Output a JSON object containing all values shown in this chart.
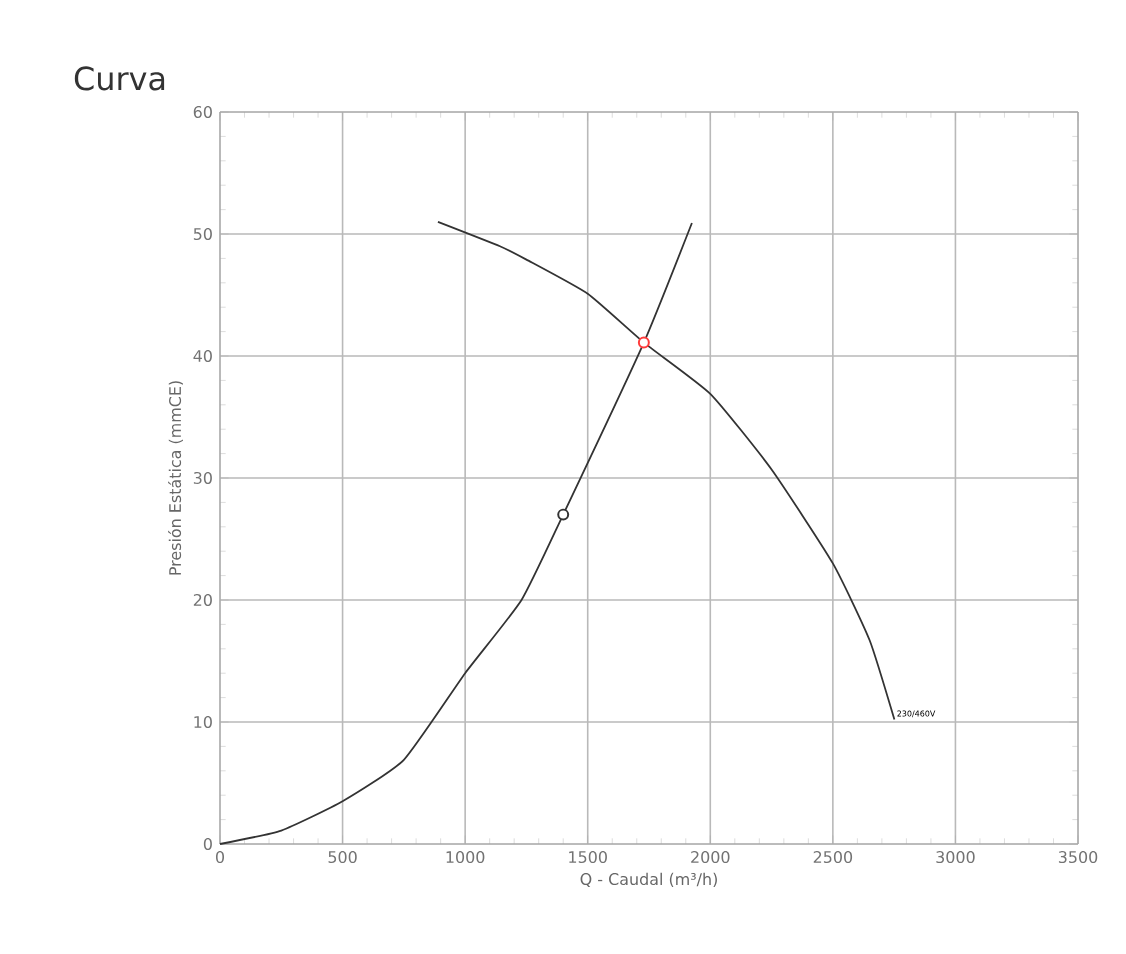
{
  "chart_data": {
    "type": "line",
    "title": "Curva",
    "xlabel": "Q - Caudal (m³/h)",
    "ylabel": "Presión Estática (mmCE)",
    "xlim": [
      0,
      3500
    ],
    "xticks": [
      0,
      500,
      1000,
      1500,
      2000,
      2500,
      3000,
      3500
    ],
    "ylim": [
      0,
      60
    ],
    "yticks": [
      0,
      10,
      20,
      30,
      40,
      50,
      60
    ],
    "grid": true,
    "series": [
      {
        "name": "230/460V",
        "color": "#333333",
        "x": [
          889,
          1142,
          1250,
          1500,
          1729,
          2000,
          2250,
          2500,
          2650,
          2751
        ],
        "values": [
          51.0,
          49.0,
          47.9,
          45.1,
          41.1,
          36.9,
          30.7,
          23.0,
          16.7,
          10.2
        ]
      },
      {
        "color": "#333333",
        "x": [
          0,
          250,
          500,
          750,
          1000,
          1230,
          1400,
          1729,
          1925
        ],
        "values": [
          0,
          1.1,
          3.5,
          6.9,
          14.0,
          20.0,
          27.0,
          41.1,
          50.9
        ]
      },
      {
        "type": "scatter",
        "color": "#333333",
        "x": [
          1400
        ],
        "values": [
          27.0
        ]
      },
      {
        "type": "scatter",
        "color": "#ff3b3b",
        "x": [
          1729
        ],
        "values": [
          41.1
        ]
      }
    ]
  }
}
